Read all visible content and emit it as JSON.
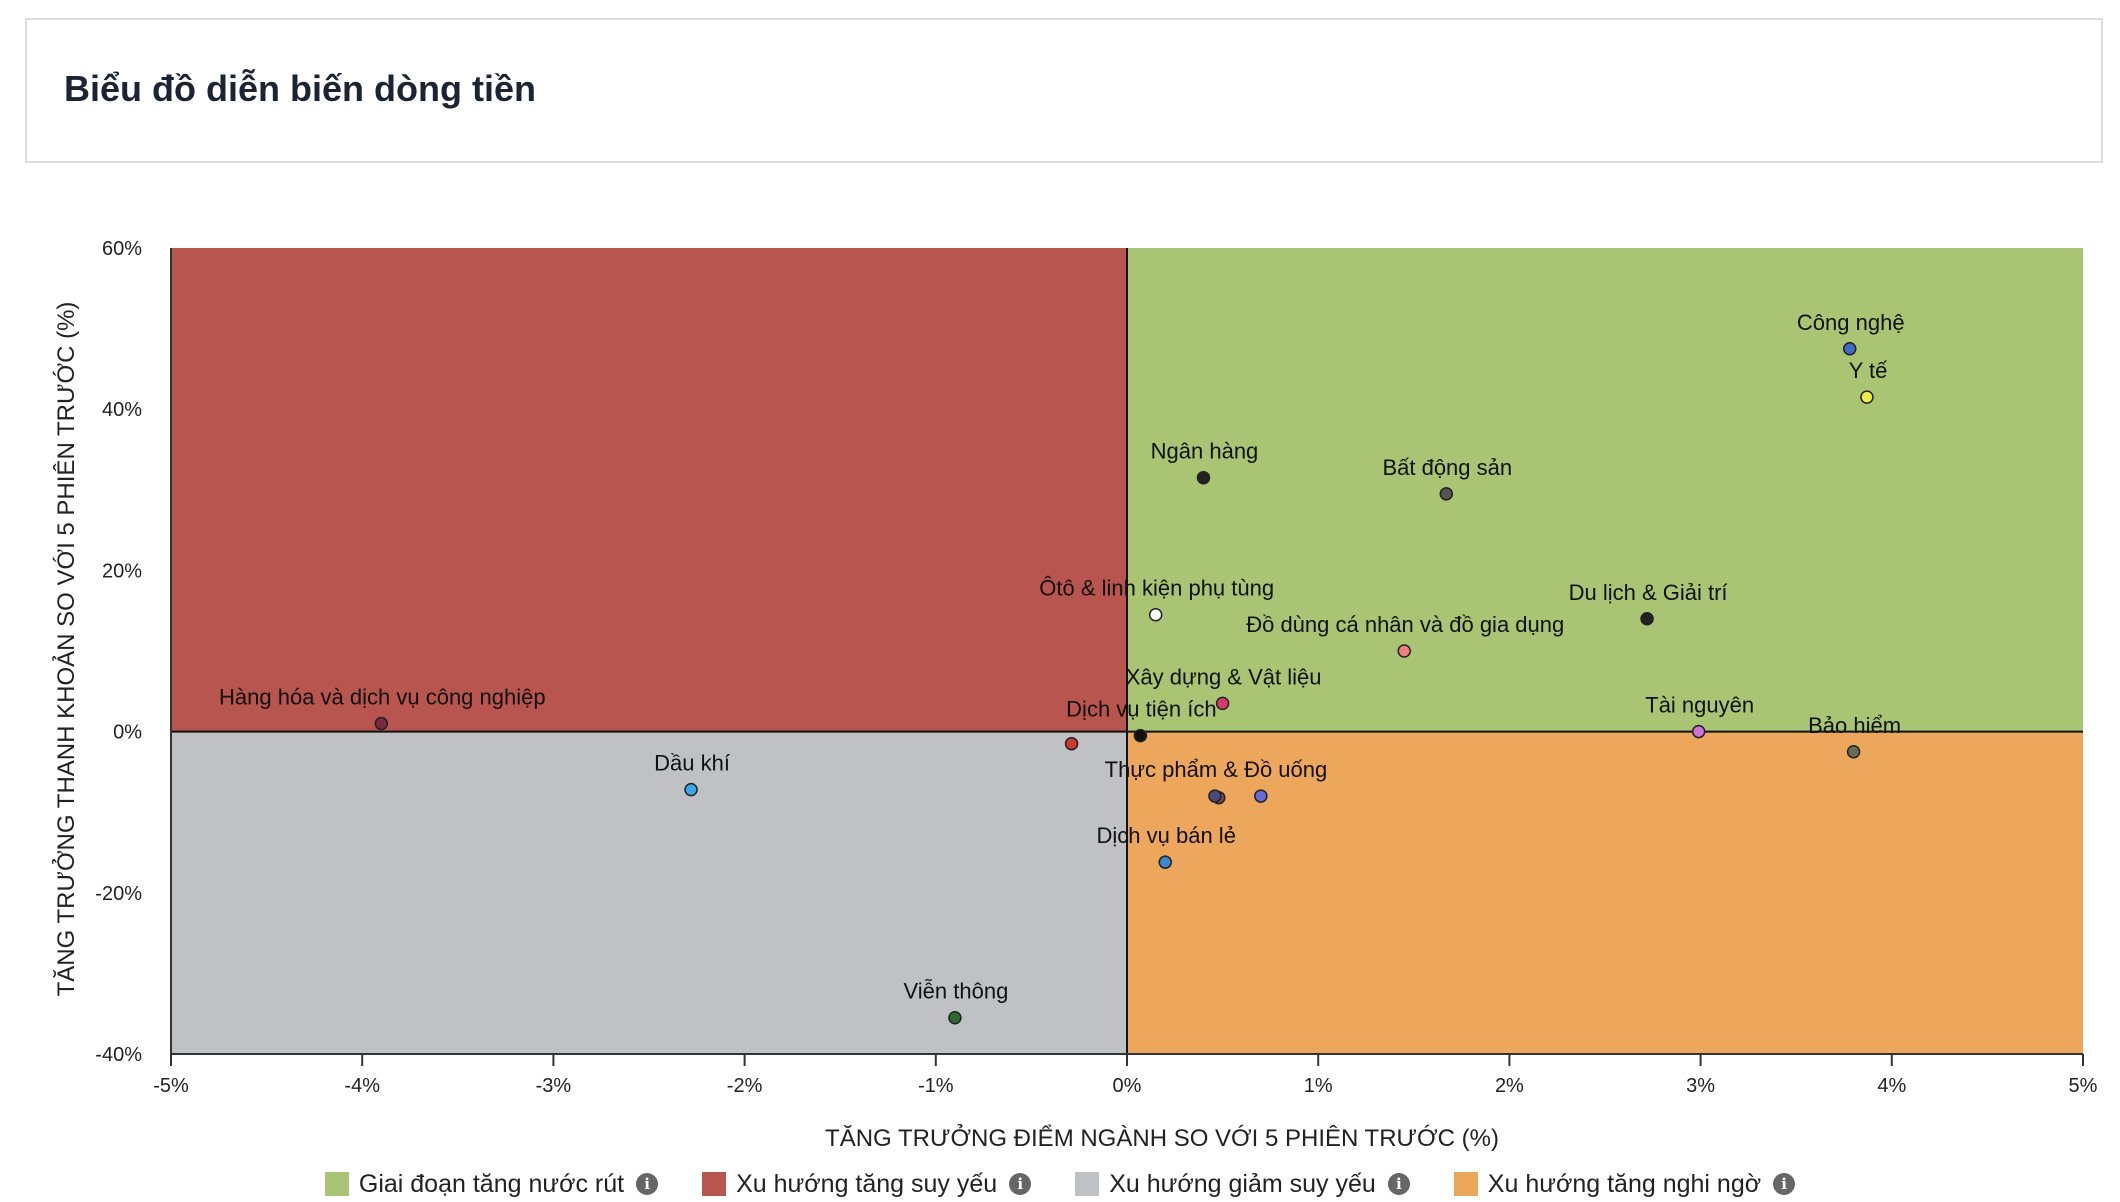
{
  "header": {
    "title": "Biểu đồ diễn biến dòng tiền"
  },
  "chart_data": {
    "type": "scatter",
    "xlabel": "TĂNG TRƯỞNG ĐIỂM NGÀNH SO VỚI 5 PHIÊN TRƯỚC (%)",
    "ylabel": "TĂNG TRƯỞNG THANH KHOẢN SO VỚI 5 PHIÊN TRƯỚC (%)",
    "xlim": [
      -5,
      5
    ],
    "ylim": [
      -40,
      60
    ],
    "x_ticks": [
      -5,
      -4,
      -3,
      -2,
      -1,
      0,
      1,
      2,
      3,
      4,
      5
    ],
    "x_tick_labels": [
      "-5%",
      "-4%",
      "-3%",
      "-2%",
      "-1%",
      "0%",
      "1%",
      "2%",
      "3%",
      "4%",
      "5%"
    ],
    "y_ticks": [
      -40,
      -20,
      0,
      20,
      40,
      60
    ],
    "y_tick_labels": [
      "-40%",
      "-20%",
      "0%",
      "20%",
      "40%",
      "60%"
    ],
    "grid": false,
    "quadrants": [
      {
        "name": "Giai đoạn tăng nước rút",
        "region": "top-right",
        "color": "#a9c574"
      },
      {
        "name": "Xu hướng tăng suy yếu",
        "region": "top-left",
        "color": "#b9554f"
      },
      {
        "name": "Xu hướng giảm suy yếu",
        "region": "bottom-left",
        "color": "#c0c1c5"
      },
      {
        "name": "Xu hướng tăng nghi ngờ",
        "region": "bottom-right",
        "color": "#eda75d"
      }
    ],
    "points": [
      {
        "label": "Công nghệ",
        "x": 3.78,
        "y": 47.5,
        "color": "#4169c8"
      },
      {
        "label": "Y tế",
        "x": 3.87,
        "y": 41.5,
        "color": "#f2ec4a"
      },
      {
        "label": "Ngân hàng",
        "x": 0.4,
        "y": 31.5,
        "color": "#222222"
      },
      {
        "label": "Bất động sản",
        "x": 1.67,
        "y": 29.5,
        "color": "#555555"
      },
      {
        "label": "Ôtô & linh kiện phụ tùng",
        "x": 0.15,
        "y": 14.5,
        "color": "#ffffff"
      },
      {
        "label": "Du lịch & Giải trí",
        "x": 2.72,
        "y": 14.0,
        "color": "#222222"
      },
      {
        "label": "Đồ dùng cá nhân và đồ gia dụng",
        "x": 1.45,
        "y": 10.0,
        "color": "#f08080"
      },
      {
        "label": "Xây dựng & Vật liệu",
        "x": 0.5,
        "y": 3.5,
        "color": "#d63a6a"
      },
      {
        "label": "Hàng hóa và dịch vụ công nghiệp",
        "x": -3.9,
        "y": 1.0,
        "color": "#7a2a40"
      },
      {
        "label": "Dịch vụ tiện ích",
        "x": 0.07,
        "y": -0.5,
        "color": "#111111"
      },
      {
        "label": "Tài nguyên",
        "x": 2.99,
        "y": 0.0,
        "color": "#d070d8"
      },
      {
        "label": "Bảo hiểm",
        "x": 3.8,
        "y": -2.5,
        "color": "#6b6b55"
      },
      {
        "label": "Dầu khí",
        "x": -2.28,
        "y": -7.2,
        "color": "#3aa8e8"
      },
      {
        "label": "Thực phẩm & Đồ uống",
        "x": 0.46,
        "y": -8.0,
        "color": "#4a4a7a"
      },
      {
        "label": "Dịch vụ bán lẻ",
        "x": 0.2,
        "y": -16.2,
        "color": "#3a8ad0"
      },
      {
        "label": "Viễn thông",
        "x": -0.9,
        "y": -35.5,
        "color": "#2e6b2a"
      }
    ],
    "unlabeled_points": [
      {
        "x": -0.29,
        "y": -1.5,
        "color": "#d03a2a"
      },
      {
        "x": 0.7,
        "y": -8.0,
        "color": "#6a6ad8"
      },
      {
        "x": 0.48,
        "y": -8.2,
        "color": "#7a4a4a"
      }
    ]
  },
  "legend": {
    "items": [
      {
        "label": "Giai đoạn tăng nước rút",
        "color": "#a9c574"
      },
      {
        "label": "Xu hướng tăng suy yếu",
        "color": "#b9554f"
      },
      {
        "label": "Xu hướng giảm suy yếu",
        "color": "#c0c1c5"
      },
      {
        "label": "Xu hướng tăng nghi ngờ",
        "color": "#eda75d"
      }
    ],
    "info_glyph": "i"
  }
}
